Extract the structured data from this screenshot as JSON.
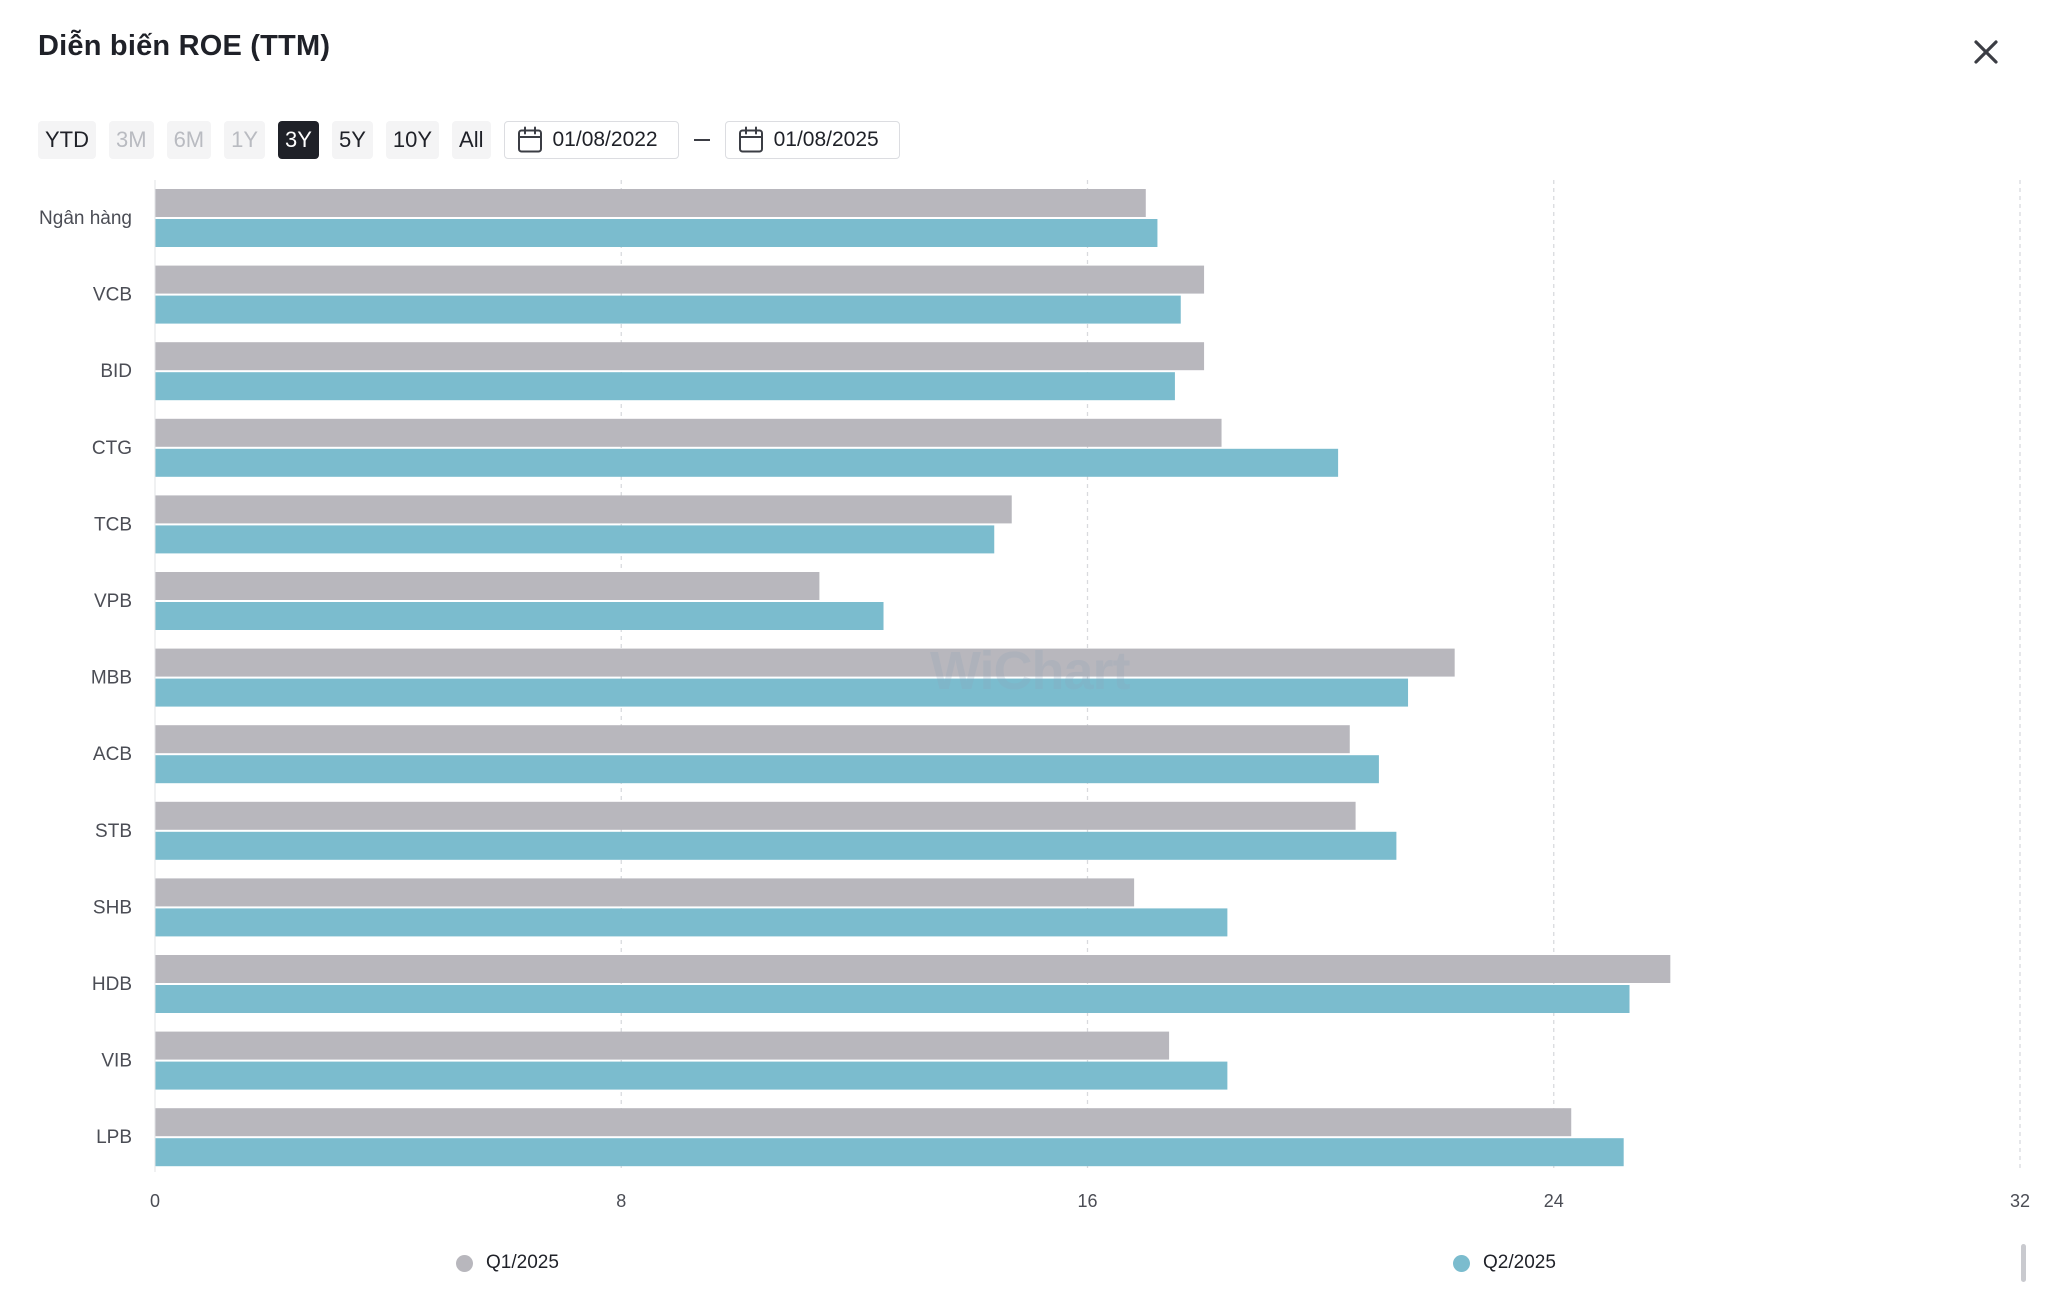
{
  "title": "Diễn biến ROE (TTM)",
  "close_icon": "close-icon",
  "ranges": [
    {
      "label": "YTD",
      "state": "normal"
    },
    {
      "label": "3M",
      "state": "disabled"
    },
    {
      "label": "6M",
      "state": "disabled"
    },
    {
      "label": "1Y",
      "state": "disabled"
    },
    {
      "label": "3Y",
      "state": "active"
    },
    {
      "label": "5Y",
      "state": "normal"
    },
    {
      "label": "10Y",
      "state": "normal"
    },
    {
      "label": "All",
      "state": "normal"
    }
  ],
  "date_from": "01/08/2022",
  "date_to": "01/08/2025",
  "watermark": "WiChart",
  "colors": {
    "q1": "#b8b7bd",
    "q2": "#7bbcce",
    "active": "#1f2128"
  },
  "chart_data": {
    "type": "bar",
    "orientation": "horizontal",
    "categories": [
      "Ngân hàng",
      "VCB",
      "BID",
      "CTG",
      "TCB",
      "VPB",
      "MBB",
      "ACB",
      "STB",
      "SHB",
      "HDB",
      "VIB",
      "LPB"
    ],
    "series": [
      {
        "name": "Q1/2025",
        "color": "#b8b7bd",
        "values": [
          17.0,
          18.0,
          18.0,
          18.3,
          14.7,
          11.4,
          22.3,
          20.5,
          20.6,
          16.8,
          26.0,
          17.4,
          24.3
        ]
      },
      {
        "name": "Q2/2025",
        "color": "#7bbcce",
        "values": [
          17.2,
          17.6,
          17.5,
          20.3,
          14.4,
          12.5,
          21.5,
          21.0,
          21.3,
          18.4,
          25.3,
          18.4,
          25.2
        ]
      }
    ],
    "xlim": [
      0,
      32
    ],
    "xticks": [
      0,
      8,
      16,
      24,
      32
    ],
    "grid": true,
    "legend": "bottom"
  }
}
